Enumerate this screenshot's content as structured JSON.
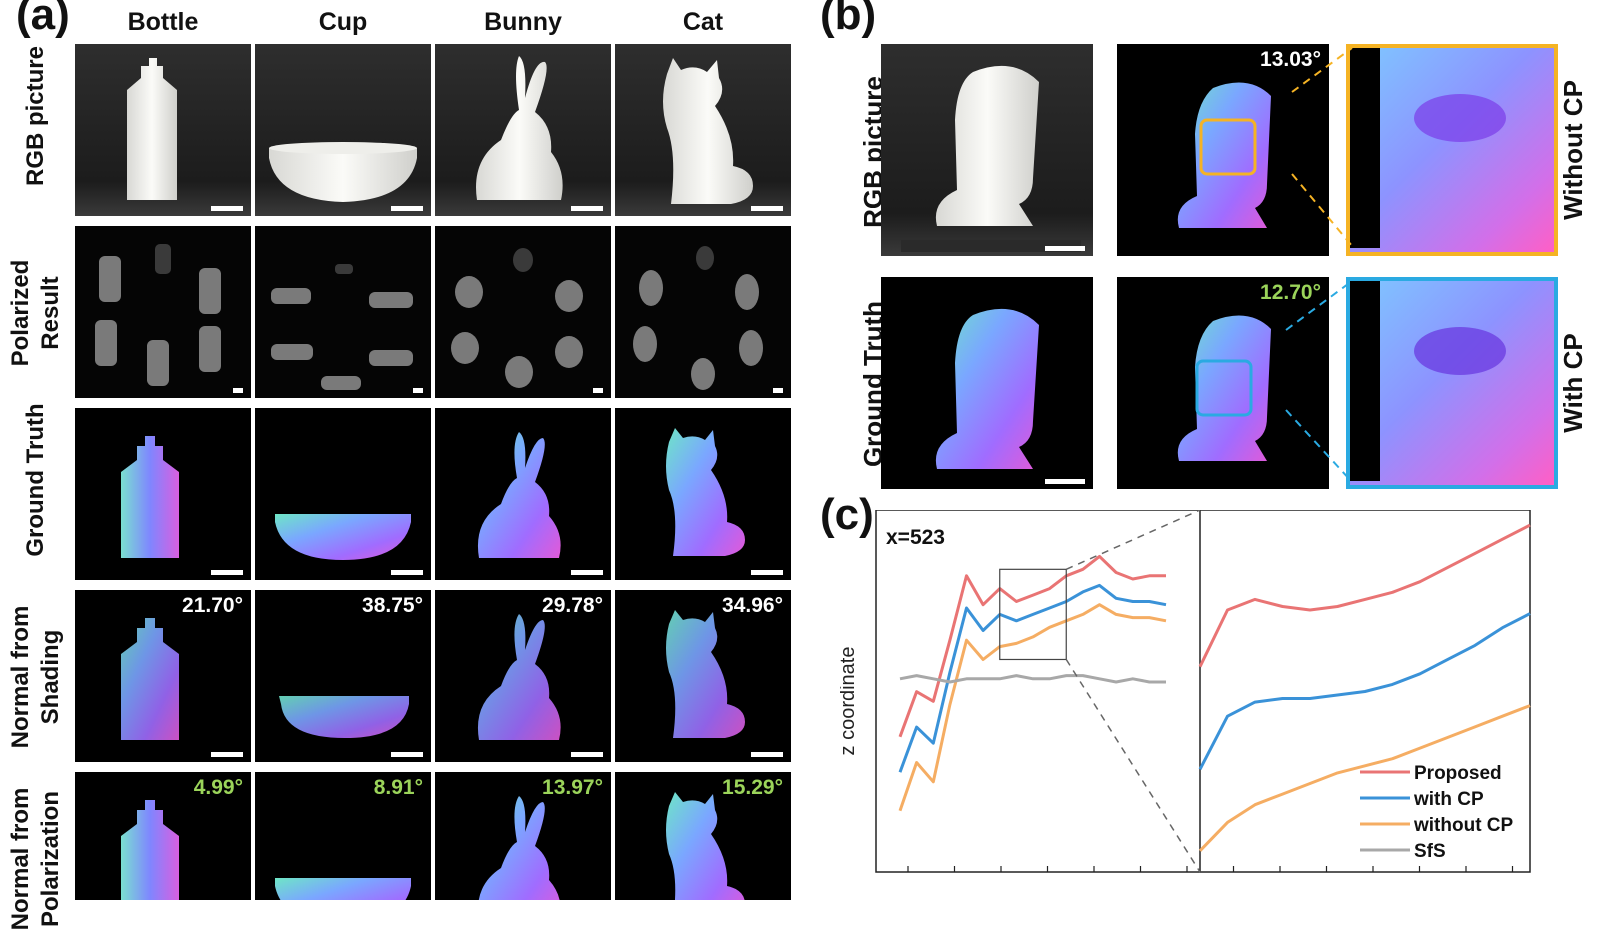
{
  "panel_a": {
    "letter": "(a)",
    "columns": [
      "Bottle",
      "Cup",
      "Bunny",
      "Cat"
    ],
    "rows": [
      {
        "label": "RGB picture"
      },
      {
        "label": "Polarized Result"
      },
      {
        "label": "Ground Truth"
      },
      {
        "label": "Normal from Shading",
        "angles": [
          "21.70°",
          "38.75°",
          "29.78°",
          "34.96°"
        ]
      },
      {
        "label": "Normal from Polarization",
        "angles": [
          "4.99°",
          "8.91°",
          "13.97°",
          "15.29°"
        ]
      }
    ]
  },
  "panel_b": {
    "letter": "(b)",
    "row_labels": [
      "RGB picture",
      "Ground Truth"
    ],
    "angles": [
      "13.03°",
      "12.70°"
    ],
    "side_labels": [
      "Without CP",
      "With CP"
    ],
    "colors": {
      "without_cp_box": "#f5b324",
      "with_cp_box": "#2aaae2"
    }
  },
  "panel_c": {
    "letter": "(c)",
    "annotation": "x=523",
    "legend": [
      "Proposed",
      "with CP",
      "without CP",
      "SfS"
    ]
  },
  "chart_data": {
    "type": "line",
    "annotation": "x=523",
    "xlabel": "",
    "ylabel": "z coordinate",
    "grid": false,
    "legend_position": "bottom-right",
    "x": [
      0,
      1,
      2,
      3,
      4,
      5,
      6,
      7,
      8,
      9,
      10,
      11,
      12,
      13,
      14,
      15,
      16
    ],
    "series": [
      {
        "name": "Proposed",
        "color": "#e97474",
        "values": [
          0.42,
          0.56,
          0.53,
          0.72,
          0.92,
          0.83,
          0.88,
          0.84,
          0.86,
          0.88,
          0.92,
          0.94,
          0.98,
          0.93,
          0.91,
          0.92,
          0.92
        ]
      },
      {
        "name": "with CP",
        "color": "#3a92d8",
        "values": [
          0.31,
          0.45,
          0.4,
          0.62,
          0.82,
          0.75,
          0.8,
          0.78,
          0.8,
          0.82,
          0.84,
          0.87,
          0.89,
          0.85,
          0.84,
          0.84,
          0.83
        ]
      },
      {
        "name": "without CP",
        "color": "#f5ad63",
        "values": [
          0.19,
          0.34,
          0.28,
          0.52,
          0.72,
          0.66,
          0.7,
          0.71,
          0.73,
          0.76,
          0.78,
          0.8,
          0.83,
          0.8,
          0.79,
          0.79,
          0.78
        ]
      },
      {
        "name": "SfS",
        "color": "#a8a8a8",
        "values": [
          0.6,
          0.61,
          0.6,
          0.59,
          0.6,
          0.6,
          0.6,
          0.61,
          0.6,
          0.6,
          0.61,
          0.61,
          0.6,
          0.59,
          0.6,
          0.59,
          0.59
        ]
      }
    ],
    "zoom": {
      "x": [
        0,
        1,
        2,
        3,
        4,
        5,
        6,
        7,
        8,
        9,
        10,
        11,
        12
      ],
      "series": [
        {
          "name": "Proposed",
          "values": [
            0.58,
            0.74,
            0.77,
            0.75,
            0.74,
            0.75,
            0.77,
            0.79,
            0.82,
            0.86,
            0.9,
            0.94,
            0.98
          ]
        },
        {
          "name": "with CP",
          "values": [
            0.29,
            0.44,
            0.48,
            0.49,
            0.49,
            0.5,
            0.51,
            0.53,
            0.56,
            0.6,
            0.64,
            0.69,
            0.73
          ]
        },
        {
          "name": "without CP",
          "values": [
            0.06,
            0.14,
            0.19,
            0.22,
            0.25,
            0.28,
            0.3,
            0.32,
            0.35,
            0.38,
            0.41,
            0.44,
            0.47
          ]
        }
      ]
    }
  }
}
